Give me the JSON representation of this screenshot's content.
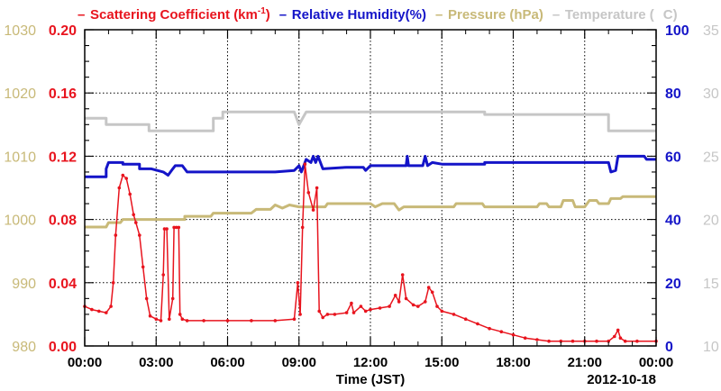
{
  "chart_data": {
    "type": "line",
    "legend": [
      {
        "name": "Scattering Coefficient (km",
        "sup": "-1",
        "tail": ")",
        "color": "#e8141e"
      },
      {
        "name": "Relative Humidity(%)",
        "color": "#1414c8"
      },
      {
        "name": "Pressure (hPa)",
        "color": "#c8b978"
      },
      {
        "name": "Temperature (",
        "tail": "C)",
        "color": "#c6c6c6"
      }
    ],
    "legend_placement": "top",
    "xlabel": "Time (JST)",
    "date_label": "2012-10-18",
    "x_ticks": [
      "00:00",
      "03:00",
      "06:00",
      "09:00",
      "12:00",
      "15:00",
      "18:00",
      "21:00",
      "00:00"
    ],
    "xlim_hours": [
      0,
      24
    ],
    "grid": true,
    "axes": {
      "scattering": {
        "ylim": [
          0,
          0.2
        ],
        "ticks": [
          "0.00",
          "0.04",
          "0.08",
          "0.12",
          "0.16",
          "0.20"
        ],
        "side": "left-inner",
        "color": "#e8141e"
      },
      "pressure": {
        "ylim": [
          980,
          1030
        ],
        "ticks": [
          "980",
          "990",
          "1000",
          "1010",
          "1020",
          "1030"
        ],
        "side": "left-outer",
        "color": "#c8b978"
      },
      "humidity": {
        "ylim": [
          0,
          100
        ],
        "ticks": [
          "0",
          "20",
          "40",
          "60",
          "80",
          "100"
        ],
        "side": "right-inner",
        "color": "#1414c8"
      },
      "temperature": {
        "ylim": [
          10,
          35
        ],
        "ticks": [
          "10",
          "15",
          "20",
          "25",
          "30",
          "35"
        ],
        "side": "right-outer",
        "color": "#c6c6c6"
      }
    },
    "series": [
      {
        "name": "Scattering Coefficient (km-1)",
        "axis": "scattering",
        "color": "#e8141e",
        "markers": true,
        "points": [
          [
            0,
            0.025
          ],
          [
            0.3,
            0.023
          ],
          [
            0.6,
            0.022
          ],
          [
            0.9,
            0.021
          ],
          [
            1.1,
            0.025
          ],
          [
            1.2,
            0.04
          ],
          [
            1.3,
            0.07
          ],
          [
            1.45,
            0.1
          ],
          [
            1.6,
            0.108
          ],
          [
            1.75,
            0.106
          ],
          [
            1.9,
            0.096
          ],
          [
            2.05,
            0.083
          ],
          [
            2.15,
            0.078
          ],
          [
            2.3,
            0.07
          ],
          [
            2.45,
            0.05
          ],
          [
            2.6,
            0.03
          ],
          [
            2.75,
            0.019
          ],
          [
            3.0,
            0.017
          ],
          [
            3.2,
            0.016
          ],
          [
            3.3,
            0.045
          ],
          [
            3.35,
            0.074
          ],
          [
            3.45,
            0.074
          ],
          [
            3.55,
            0.017
          ],
          [
            3.7,
            0.03
          ],
          [
            3.75,
            0.075
          ],
          [
            3.85,
            0.075
          ],
          [
            3.95,
            0.075
          ],
          [
            4.0,
            0.02
          ],
          [
            4.1,
            0.017
          ],
          [
            4.3,
            0.016
          ],
          [
            5,
            0.016
          ],
          [
            6,
            0.016
          ],
          [
            7,
            0.016
          ],
          [
            8,
            0.016
          ],
          [
            8.8,
            0.017
          ],
          [
            8.95,
            0.04
          ],
          [
            9.05,
            0.02
          ],
          [
            9.15,
            0.075
          ],
          [
            9.25,
            0.115
          ],
          [
            9.4,
            0.097
          ],
          [
            9.6,
            0.086
          ],
          [
            9.75,
            0.1
          ],
          [
            9.85,
            0.022
          ],
          [
            10.0,
            0.018
          ],
          [
            10.2,
            0.02
          ],
          [
            10.5,
            0.02
          ],
          [
            11,
            0.021
          ],
          [
            11.2,
            0.027
          ],
          [
            11.3,
            0.021
          ],
          [
            11.6,
            0.025
          ],
          [
            11.8,
            0.022
          ],
          [
            12,
            0.023
          ],
          [
            12.4,
            0.024
          ],
          [
            12.8,
            0.025
          ],
          [
            13.05,
            0.032
          ],
          [
            13.2,
            0.028
          ],
          [
            13.35,
            0.045
          ],
          [
            13.5,
            0.03
          ],
          [
            13.8,
            0.026
          ],
          [
            14.0,
            0.025
          ],
          [
            14.3,
            0.028
          ],
          [
            14.45,
            0.037
          ],
          [
            14.6,
            0.034
          ],
          [
            14.8,
            0.025
          ],
          [
            15,
            0.022
          ],
          [
            15.5,
            0.02
          ],
          [
            16,
            0.017
          ],
          [
            16.5,
            0.014
          ],
          [
            17,
            0.011
          ],
          [
            17.5,
            0.009
          ],
          [
            18,
            0.007
          ],
          [
            18.5,
            0.005
          ],
          [
            19,
            0.004
          ],
          [
            19.5,
            0.003
          ],
          [
            20,
            0.003
          ],
          [
            20.5,
            0.003
          ],
          [
            21,
            0.003
          ],
          [
            21.5,
            0.003
          ],
          [
            22.0,
            0.003
          ],
          [
            22.25,
            0.006
          ],
          [
            22.4,
            0.01
          ],
          [
            22.5,
            0.005
          ],
          [
            22.7,
            0.003
          ],
          [
            23.2,
            0.003
          ],
          [
            24,
            0.003
          ]
        ]
      },
      {
        "name": "Relative Humidity(%)",
        "axis": "humidity",
        "color": "#1414c8",
        "markers": false,
        "points": [
          [
            0,
            53.5
          ],
          [
            0.9,
            53.5
          ],
          [
            0.9,
            56
          ],
          [
            1.0,
            58
          ],
          [
            1.6,
            58
          ],
          [
            1.6,
            57.5
          ],
          [
            2.3,
            57.5
          ],
          [
            2.3,
            56
          ],
          [
            2.8,
            56
          ],
          [
            3.3,
            55
          ],
          [
            3.5,
            54
          ],
          [
            3.7,
            56
          ],
          [
            3.8,
            57
          ],
          [
            4.1,
            57
          ],
          [
            4.3,
            55
          ],
          [
            5,
            55
          ],
          [
            6,
            55
          ],
          [
            7,
            55
          ],
          [
            8,
            55
          ],
          [
            8.8,
            55.5
          ],
          [
            9.0,
            57
          ],
          [
            9.1,
            55
          ],
          [
            9.3,
            59
          ],
          [
            9.5,
            58
          ],
          [
            9.6,
            60
          ],
          [
            9.7,
            58
          ],
          [
            9.8,
            60
          ],
          [
            10,
            56
          ],
          [
            11,
            56.5
          ],
          [
            11.7,
            56.5
          ],
          [
            11.8,
            55.5
          ],
          [
            12,
            57
          ],
          [
            13,
            57
          ],
          [
            13.5,
            57
          ],
          [
            13.55,
            60
          ],
          [
            13.6,
            57
          ],
          [
            14.2,
            57
          ],
          [
            14.3,
            60
          ],
          [
            14.4,
            57
          ],
          [
            14.6,
            58
          ],
          [
            15,
            57.5
          ],
          [
            16,
            57.5
          ],
          [
            16.8,
            57.5
          ],
          [
            16.8,
            58
          ],
          [
            20,
            58
          ],
          [
            22.0,
            58
          ],
          [
            22.1,
            55
          ],
          [
            22.3,
            55.5
          ],
          [
            22.4,
            60
          ],
          [
            23.5,
            60
          ],
          [
            23.6,
            59
          ],
          [
            24,
            59
          ]
        ]
      },
      {
        "name": "Pressure (hPa)",
        "axis": "pressure",
        "color": "#c8b978",
        "markers": false,
        "points": [
          [
            0,
            998.8
          ],
          [
            0.9,
            998.8
          ],
          [
            1.0,
            999.5
          ],
          [
            1.5,
            999.5
          ],
          [
            1.6,
            1000
          ],
          [
            4.2,
            1000
          ],
          [
            4.2,
            1000.5
          ],
          [
            5.3,
            1000.5
          ],
          [
            5.4,
            1001
          ],
          [
            7,
            1001
          ],
          [
            7.2,
            1001.6
          ],
          [
            7.8,
            1001.6
          ],
          [
            8.0,
            1002.3
          ],
          [
            8.3,
            1001.8
          ],
          [
            8.6,
            1002.3
          ],
          [
            9.0,
            1002
          ],
          [
            9.5,
            1002
          ],
          [
            10.1,
            1002
          ],
          [
            10.2,
            1002.5
          ],
          [
            12.0,
            1002.5
          ],
          [
            12.2,
            1002
          ],
          [
            12.5,
            1002.5
          ],
          [
            13.0,
            1002.5
          ],
          [
            13.2,
            1001.5
          ],
          [
            13.4,
            1002
          ],
          [
            14,
            1002
          ],
          [
            15.5,
            1002
          ],
          [
            15.6,
            1002.5
          ],
          [
            16.7,
            1002.5
          ],
          [
            16.8,
            1002
          ],
          [
            18,
            1002
          ],
          [
            19,
            1002
          ],
          [
            19.1,
            1002.5
          ],
          [
            19.4,
            1002.5
          ],
          [
            19.5,
            1002
          ],
          [
            20.0,
            1002
          ],
          [
            20.1,
            1003
          ],
          [
            20.5,
            1003
          ],
          [
            20.6,
            1002
          ],
          [
            21,
            1002
          ],
          [
            21.2,
            1003
          ],
          [
            21.5,
            1003
          ],
          [
            21.6,
            1002.5
          ],
          [
            22.0,
            1002.5
          ],
          [
            22.1,
            1003.3
          ],
          [
            22.5,
            1003.3
          ],
          [
            22.6,
            1003.6
          ],
          [
            24,
            1003.6
          ]
        ]
      },
      {
        "name": "Temperature (C)",
        "axis": "temperature",
        "color": "#c6c6c6",
        "markers": false,
        "points": [
          [
            0,
            28
          ],
          [
            0.9,
            28
          ],
          [
            0.9,
            27.5
          ],
          [
            2.7,
            27.5
          ],
          [
            2.7,
            27
          ],
          [
            5.4,
            27
          ],
          [
            5.4,
            28
          ],
          [
            5.8,
            28
          ],
          [
            5.8,
            28.5
          ],
          [
            8.8,
            28.5
          ],
          [
            9.0,
            27.5
          ],
          [
            9.3,
            28.5
          ],
          [
            14.5,
            28.5
          ],
          [
            16.8,
            28.5
          ],
          [
            16.8,
            28.3
          ],
          [
            20.5,
            28.3
          ],
          [
            22.0,
            28.3
          ],
          [
            22.0,
            27
          ],
          [
            24,
            27
          ]
        ]
      }
    ]
  }
}
